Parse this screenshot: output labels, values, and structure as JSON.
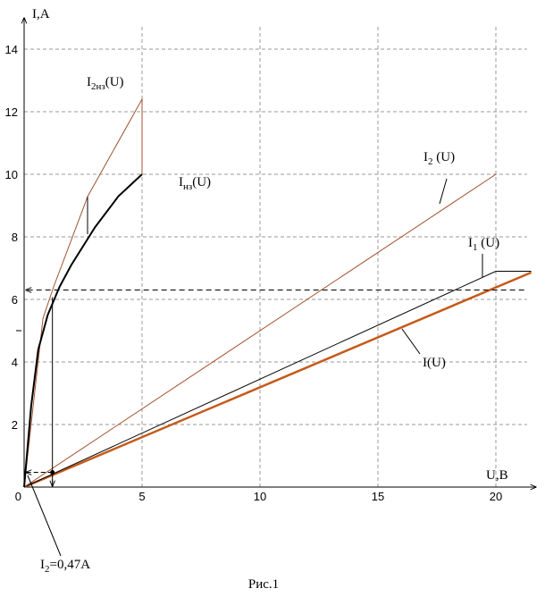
{
  "chart_data": {
    "type": "line",
    "x_label": "U,B",
    "y_label": "I,A",
    "caption": "Рис.1",
    "xlim": [
      0,
      21.7
    ],
    "ylim": [
      0,
      15
    ],
    "xticks": [
      0,
      5,
      10,
      15,
      20
    ],
    "yticks": [
      2,
      4,
      6,
      8,
      10,
      12,
      14
    ],
    "grid": true,
    "series": [
      {
        "label": {
          "base": "I",
          "sub": "",
          "arg": "(U)"
        },
        "color": "#c55a1a",
        "width": 2.5,
        "x": [
          0,
          21.5
        ],
        "values": [
          0,
          6.86
        ]
      },
      {
        "label": {
          "base": "I",
          "sub": "1",
          "arg": " (U)"
        },
        "color": "#000000",
        "width": 1,
        "x": [
          0,
          20,
          21.5
        ],
        "values": [
          0,
          6.9,
          6.9
        ]
      },
      {
        "label": {
          "base": "I",
          "sub": "2",
          "arg": " (U)"
        },
        "color": "#a0522d",
        "width": 1,
        "x": [
          0,
          20
        ],
        "values": [
          0,
          10
        ]
      },
      {
        "label": {
          "base": "I",
          "sub": "2нз",
          "arg": "(U)"
        },
        "color": "#a0522d",
        "width": 1,
        "x": [
          0,
          0.8,
          1.25,
          2.7,
          5,
          5
        ],
        "values": [
          0,
          5.4,
          6.4,
          9.3,
          12.4,
          10
        ]
      },
      {
        "label": {
          "base": "I",
          "sub": "нз",
          "arg": "(U)"
        },
        "color": "#000000",
        "width": 2,
        "x": [
          0,
          0.3,
          0.6,
          1,
          1.5,
          2,
          3,
          4,
          5
        ],
        "values": [
          0,
          2.6,
          4.4,
          5.5,
          6.4,
          7.1,
          8.3,
          9.3,
          10
        ]
      }
    ],
    "guides": {
      "x": 1.2,
      "y": 6.3,
      "y_end_x": 21.2,
      "point": 0.47,
      "label": {
        "base": "I",
        "sub": "2",
        "arg": "=0,47A"
      }
    }
  }
}
